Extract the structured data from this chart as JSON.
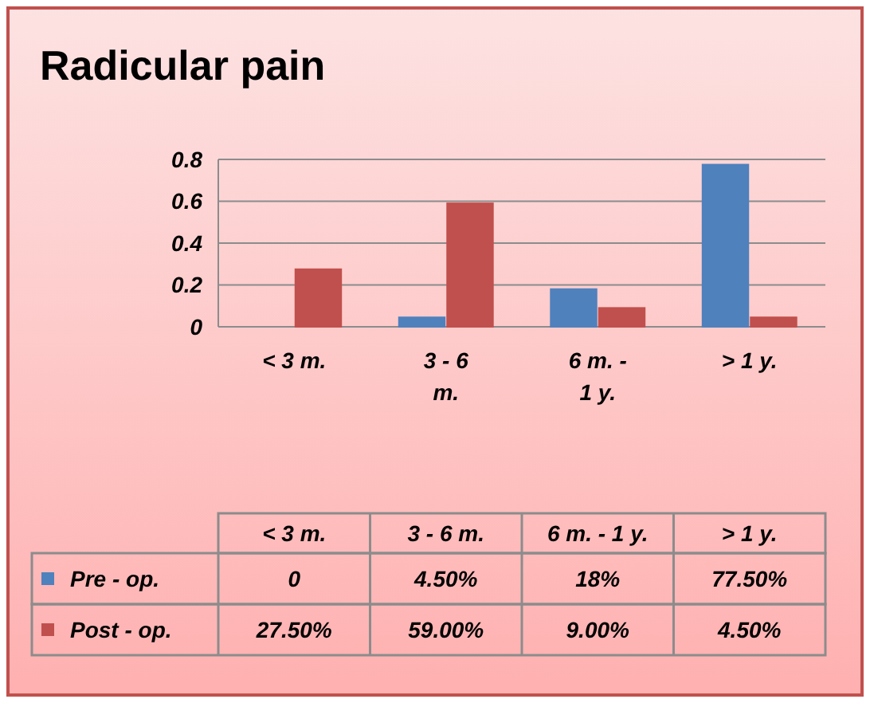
{
  "chart_data": {
    "type": "bar",
    "title": "Radicular pain",
    "categories": [
      "< 3 m.",
      "3 - 6 m.",
      "6 m. - 1 y.",
      "> 1 y."
    ],
    "series": [
      {
        "name": "Pre - op.",
        "color": "#4f81bd",
        "values": [
          0,
          0.045,
          0.18,
          0.775
        ],
        "value_labels": [
          "0",
          "4.50%",
          "18%",
          "77.50%"
        ]
      },
      {
        "name": "Post - op.",
        "color": "#c0504d",
        "values": [
          0.275,
          0.59,
          0.09,
          0.045
        ],
        "value_labels": [
          "27.50%",
          "59.00%",
          "9.00%",
          "4.50%"
        ]
      }
    ],
    "ylim": [
      0,
      0.8
    ],
    "yticks": [
      0,
      0.2,
      0.4,
      0.6,
      0.8
    ],
    "grid": "y",
    "legend": "bottom"
  }
}
